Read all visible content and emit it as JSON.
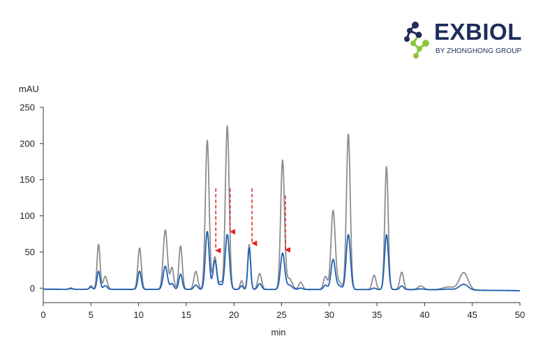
{
  "brand": {
    "name": "EXBIOL",
    "tagline": "BY ZHONGHONG GROUP",
    "colors": {
      "navy": "#1e2d5a",
      "green": "#8cc63f"
    }
  },
  "chart_data": {
    "type": "line",
    "ylabel": "mAU",
    "xlabel": "min",
    "xlim": [
      0,
      50
    ],
    "ylim": [
      -20,
      250
    ],
    "xticks": [
      0,
      5,
      10,
      15,
      20,
      25,
      30,
      35,
      40,
      45,
      50
    ],
    "yticks": [
      0,
      50,
      100,
      150,
      200,
      250
    ],
    "grid": false,
    "series": [
      {
        "color": "#8c8c8c",
        "baseline": [
          [
            0,
            -1.5
          ],
          [
            40,
            -2
          ],
          [
            50,
            -3.5
          ]
        ],
        "peaks": [
          [
            2.9,
            2,
            0.15
          ],
          [
            5.0,
            5,
            0.15
          ],
          [
            5.8,
            62,
            0.16
          ],
          [
            6.5,
            18,
            0.2
          ],
          [
            10.1,
            57,
            0.18
          ],
          [
            12.8,
            82,
            0.22
          ],
          [
            13.5,
            30,
            0.18
          ],
          [
            14.4,
            60,
            0.18
          ],
          [
            16.0,
            25,
            0.2
          ],
          [
            17.2,
            206,
            0.2
          ],
          [
            18.0,
            45,
            0.2
          ],
          [
            18.6,
            10,
            0.15
          ],
          [
            19.3,
            226,
            0.2
          ],
          [
            20.8,
            12,
            0.15
          ],
          [
            21.6,
            62,
            0.15
          ],
          [
            22.7,
            22,
            0.2
          ],
          [
            25.1,
            178,
            0.2
          ],
          [
            25.8,
            15,
            0.3
          ],
          [
            27.0,
            10,
            0.2
          ],
          [
            29.6,
            18,
            0.2
          ],
          [
            30.4,
            108,
            0.22
          ],
          [
            31.0,
            10,
            0.3
          ],
          [
            32.0,
            215,
            0.2
          ],
          [
            34.7,
            20,
            0.2
          ],
          [
            36.0,
            170,
            0.18
          ],
          [
            37.6,
            24,
            0.2
          ],
          [
            39.6,
            5,
            0.3
          ],
          [
            42.5,
            4,
            0.6
          ],
          [
            44.1,
            24,
            0.45
          ]
        ]
      },
      {
        "color": "#1f5fb5",
        "baseline": [
          [
            0,
            -1.5
          ],
          [
            40,
            -2
          ],
          [
            50,
            -3.5
          ]
        ],
        "peaks": [
          [
            2.9,
            1,
            0.15
          ],
          [
            5.0,
            3,
            0.15
          ],
          [
            5.8,
            25,
            0.16
          ],
          [
            6.5,
            5,
            0.2
          ],
          [
            10.1,
            25,
            0.18
          ],
          [
            12.8,
            32,
            0.22
          ],
          [
            13.5,
            8,
            0.18
          ],
          [
            14.4,
            21,
            0.18
          ],
          [
            16.0,
            6,
            0.2
          ],
          [
            17.2,
            80,
            0.2
          ],
          [
            18.0,
            40,
            0.2
          ],
          [
            18.6,
            6,
            0.15
          ],
          [
            19.3,
            76,
            0.22
          ],
          [
            20.8,
            5,
            0.15
          ],
          [
            21.6,
            57,
            0.15
          ],
          [
            22.7,
            8,
            0.2
          ],
          [
            25.1,
            50,
            0.22
          ],
          [
            25.8,
            6,
            0.3
          ],
          [
            27.0,
            2,
            0.2
          ],
          [
            29.6,
            6,
            0.2
          ],
          [
            30.4,
            41,
            0.22
          ],
          [
            31.0,
            5,
            0.3
          ],
          [
            32.0,
            76,
            0.22
          ],
          [
            34.7,
            2,
            0.2
          ],
          [
            36.0,
            76,
            0.2
          ],
          [
            37.6,
            5,
            0.2
          ],
          [
            39.6,
            1,
            0.3
          ],
          [
            42.5,
            1,
            0.6
          ],
          [
            44.1,
            8,
            0.45
          ]
        ]
      }
    ],
    "annotations": [
      {
        "type": "arrow",
        "color": "#e02020",
        "x": 18.1,
        "y_from": 138,
        "y_to": 52
      },
      {
        "type": "arrow",
        "color": "#e02020",
        "x": 19.6,
        "y_from": 138,
        "y_to": 78
      },
      {
        "type": "arrow",
        "color": "#e02020",
        "x": 21.9,
        "y_from": 138,
        "y_to": 62
      },
      {
        "type": "arrow",
        "color": "#e02020",
        "x": 25.4,
        "y_from": 128,
        "y_to": 53
      }
    ]
  }
}
